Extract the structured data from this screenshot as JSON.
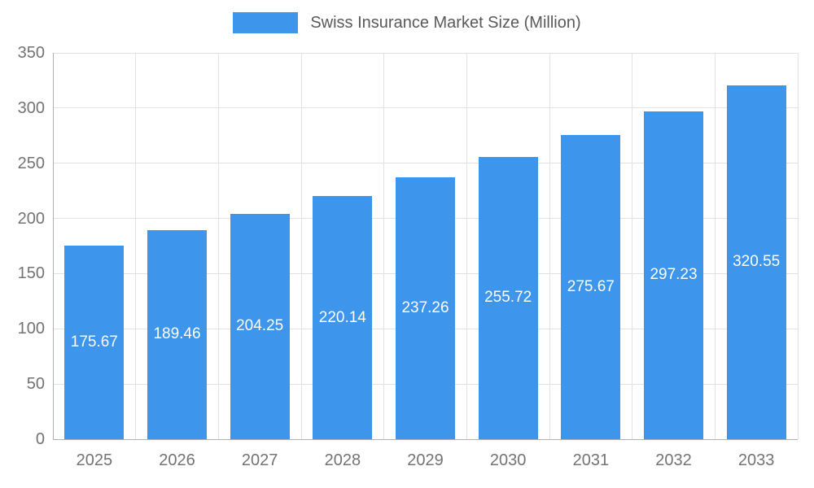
{
  "chart_data": {
    "type": "bar",
    "title": "Swiss Insurance Market Size (Million)",
    "categories": [
      "2025",
      "2026",
      "2027",
      "2028",
      "2029",
      "2030",
      "2031",
      "2032",
      "2033"
    ],
    "values": [
      175.67,
      189.46,
      204.25,
      220.14,
      237.26,
      255.72,
      275.67,
      297.23,
      320.55
    ],
    "xlabel": "",
    "ylabel": "",
    "ylim": [
      0,
      350
    ],
    "ytick_step": 50,
    "grid": true,
    "legend_position": "top",
    "colors": {
      "bar": "#3d95ec",
      "bar_label": "#ffffff",
      "axis_line": "#b0b0b0",
      "gridline": "#e2e2e2",
      "tick_label": "#737373",
      "legend_text": "#595959",
      "background": "#ffffff"
    }
  }
}
